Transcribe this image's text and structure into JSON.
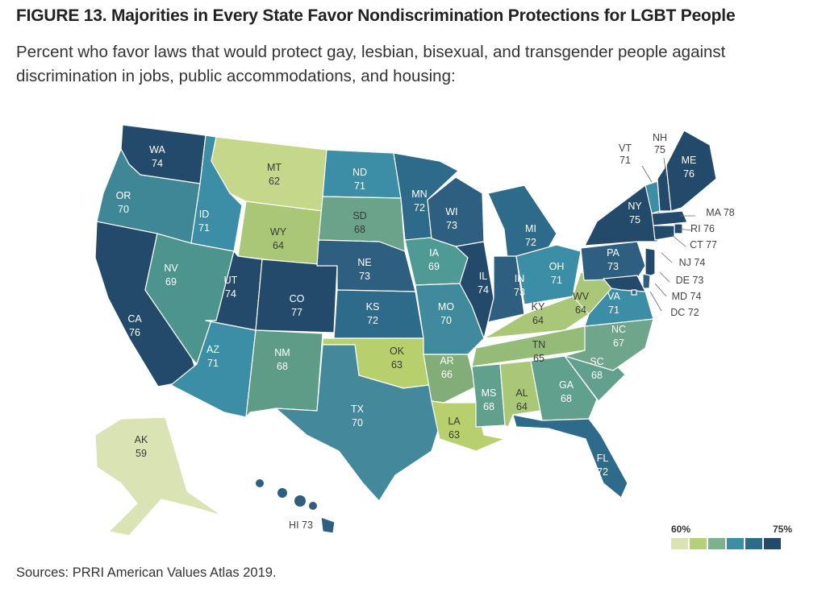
{
  "figure": {
    "title": "FIGURE 13.  Majorities in Every State Favor Nondiscrimination Protections for LGBT People",
    "subtitle": "Percent who favor laws that would protect gay, lesbian, bisexual, and transgender people against discrimination in jobs, public accommodations, and housing:"
  },
  "legend": {
    "low_label": "60%",
    "high_label": "75%",
    "colors": [
      "#d9e3b4",
      "#b6d07a",
      "#7fb191",
      "#3b8ea5",
      "#2e6b8a",
      "#234a6b"
    ]
  },
  "source": "Sources: PRRI American Values Atlas 2019.",
  "states": [
    {
      "abbr": "WA",
      "value": "74",
      "color": "#234a6b"
    },
    {
      "abbr": "OR",
      "value": "70",
      "color": "#3f8796"
    },
    {
      "abbr": "CA",
      "value": "76",
      "color": "#234a6b"
    },
    {
      "abbr": "ID",
      "value": "71",
      "color": "#3b8ea5"
    },
    {
      "abbr": "NV",
      "value": "69",
      "color": "#4e948e"
    },
    {
      "abbr": "MT",
      "value": "62",
      "color": "#c4d78a"
    },
    {
      "abbr": "WY",
      "value": "64",
      "color": "#a9c777"
    },
    {
      "abbr": "UT",
      "value": "74",
      "color": "#234a6b"
    },
    {
      "abbr": "AZ",
      "value": "71",
      "color": "#3b8ea5"
    },
    {
      "abbr": "CO",
      "value": "77",
      "color": "#234a6b"
    },
    {
      "abbr": "NM",
      "value": "68",
      "color": "#5e9c88"
    },
    {
      "abbr": "ND",
      "value": "71",
      "color": "#3b8ea5"
    },
    {
      "abbr": "SD",
      "value": "68",
      "color": "#6aa38a"
    },
    {
      "abbr": "NE",
      "value": "73",
      "color": "#2e5f80"
    },
    {
      "abbr": "KS",
      "value": "72",
      "color": "#2e6b8a"
    },
    {
      "abbr": "OK",
      "value": "63",
      "color": "#b8cf6e"
    },
    {
      "abbr": "TX",
      "value": "70",
      "color": "#43899b"
    },
    {
      "abbr": "MN",
      "value": "72",
      "color": "#2e6b8a"
    },
    {
      "abbr": "IA",
      "value": "69",
      "color": "#4f9a94"
    },
    {
      "abbr": "MO",
      "value": "70",
      "color": "#41899c"
    },
    {
      "abbr": "AR",
      "value": "66",
      "color": "#82ad78"
    },
    {
      "abbr": "LA",
      "value": "63",
      "color": "#b8cf6e"
    },
    {
      "abbr": "WI",
      "value": "73",
      "color": "#2e5f80"
    },
    {
      "abbr": "IL",
      "value": "74",
      "color": "#234a6b"
    },
    {
      "abbr": "MI",
      "value": "72",
      "color": "#2e6b8a"
    },
    {
      "abbr": "IN",
      "value": "73",
      "color": "#2e5f80"
    },
    {
      "abbr": "OH",
      "value": "71",
      "color": "#3b8ea5"
    },
    {
      "abbr": "KY",
      "value": "64",
      "color": "#a9c777"
    },
    {
      "abbr": "TN",
      "value": "65",
      "color": "#95bb79"
    },
    {
      "abbr": "MS",
      "value": "68",
      "color": "#61a08d"
    },
    {
      "abbr": "AL",
      "value": "64",
      "color": "#a9c777"
    },
    {
      "abbr": "GA",
      "value": "68",
      "color": "#61a08d"
    },
    {
      "abbr": "FL",
      "value": "72",
      "color": "#2e6b8a"
    },
    {
      "abbr": "SC",
      "value": "68",
      "color": "#61a08d"
    },
    {
      "abbr": "NC",
      "value": "67",
      "color": "#6fa58b"
    },
    {
      "abbr": "VA",
      "value": "71",
      "color": "#3b8ea5"
    },
    {
      "abbr": "WV",
      "value": "64",
      "color": "#a9c777"
    },
    {
      "abbr": "PA",
      "value": "73",
      "color": "#2e5f80"
    },
    {
      "abbr": "NY",
      "value": "75",
      "color": "#234a6b"
    },
    {
      "abbr": "NJ",
      "value": "74",
      "color": "#234a6b"
    },
    {
      "abbr": "DE",
      "value": "73",
      "color": "#2e5f80"
    },
    {
      "abbr": "MD",
      "value": "74",
      "color": "#234a6b"
    },
    {
      "abbr": "DC",
      "value": "72",
      "color": "#2e6b8a"
    },
    {
      "abbr": "VT",
      "value": "71",
      "color": "#3b8ea5"
    },
    {
      "abbr": "NH",
      "value": "75",
      "color": "#234a6b"
    },
    {
      "abbr": "ME",
      "value": "76",
      "color": "#234a6b"
    },
    {
      "abbr": "MA",
      "value": "78",
      "color": "#234a6b"
    },
    {
      "abbr": "RI",
      "value": "76",
      "color": "#234a6b"
    },
    {
      "abbr": "CT",
      "value": "77",
      "color": "#234a6b"
    },
    {
      "abbr": "AK",
      "value": "59",
      "color": "#d9e3b4"
    },
    {
      "abbr": "HI",
      "value": "73",
      "color": "#2e5f80"
    }
  ]
}
